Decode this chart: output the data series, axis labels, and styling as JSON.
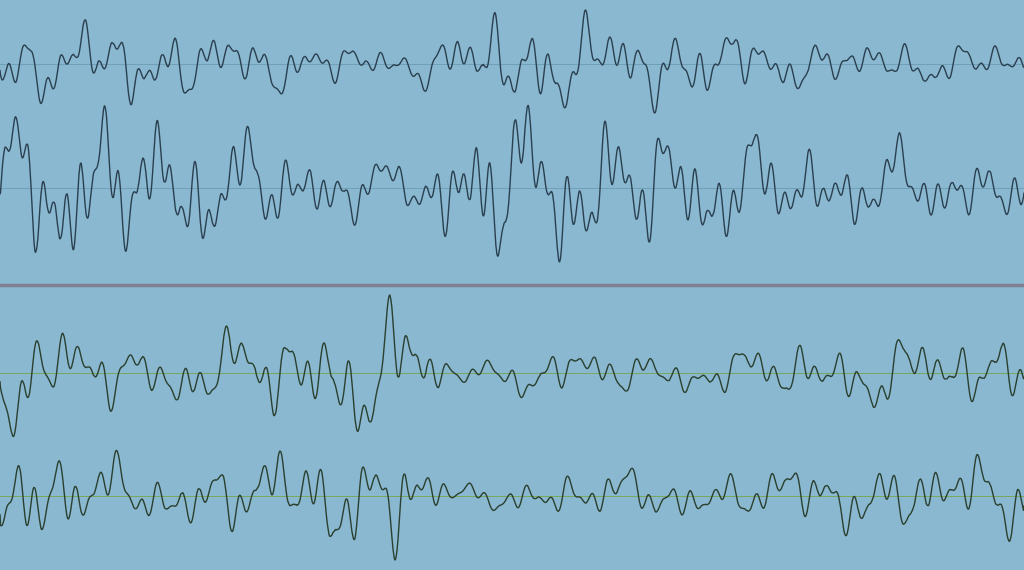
{
  "blue_bg": "#8ab8d0",
  "green_bg": "#96bc6a",
  "divider_color": "#808090",
  "line_color_blue": "#2a4050",
  "line_color_green": "#2a4030",
  "center_line_color_blue": "#70a0b8",
  "center_line_color_green": "#78a858",
  "figsize": [
    10.24,
    5.7
  ],
  "dpi": 100,
  "n_points": 2000,
  "seed": 42
}
